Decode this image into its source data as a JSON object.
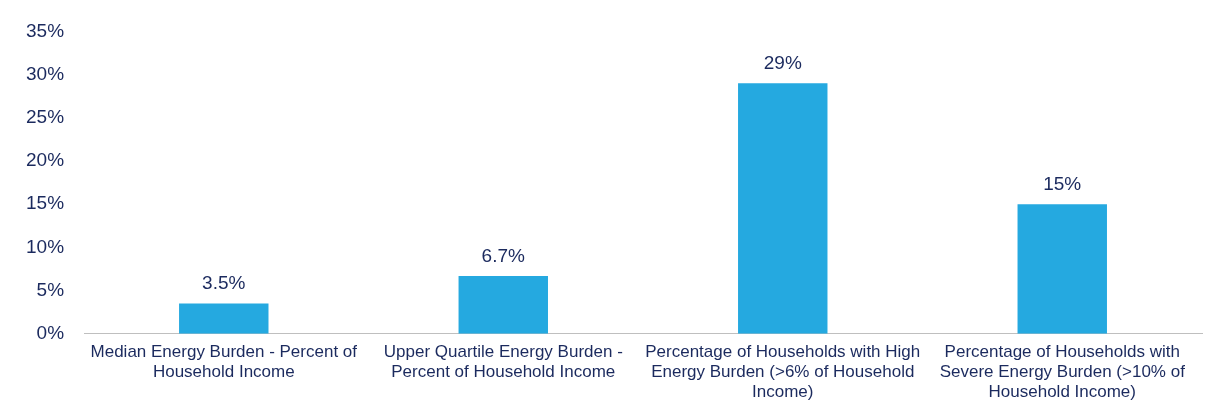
{
  "chart_data": {
    "type": "bar",
    "categories": [
      "Median Energy Burden - Percent of Household Income",
      "Upper Quartile Energy Burden - Percent of Household Income",
      "Percentage of Households with High Energy Burden (>6% of Household Income)",
      "Percentage of Households with Severe Energy Burden (>10% of Household Income)"
    ],
    "values": [
      3.5,
      6.7,
      29,
      15
    ],
    "value_labels": [
      "3.5%",
      "6.7%",
      "29%",
      "15%"
    ],
    "color": "#25a9e0",
    "ylim": [
      0,
      35
    ],
    "yticks": [
      {
        "value": 0,
        "label": "0%"
      },
      {
        "value": 5,
        "label": "5%"
      },
      {
        "value": 10,
        "label": "10%"
      },
      {
        "value": 15,
        "label": "15%"
      },
      {
        "value": 20,
        "label": "20%"
      },
      {
        "value": 25,
        "label": "25%"
      },
      {
        "value": 30,
        "label": "30%"
      },
      {
        "value": 35,
        "label": "35%"
      }
    ],
    "grid": false,
    "legend": false
  }
}
